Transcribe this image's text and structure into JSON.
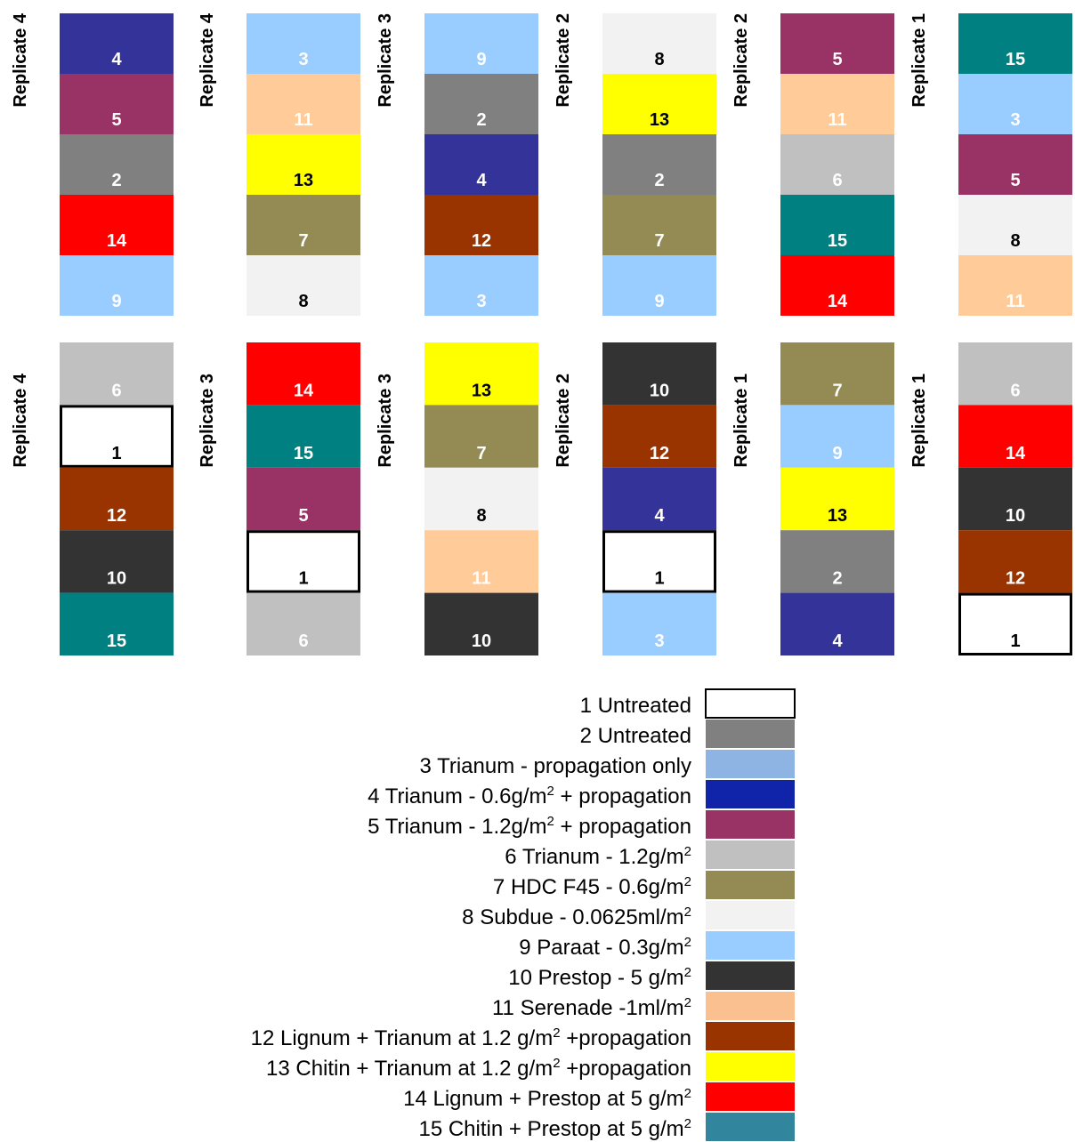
{
  "plot_colors": {
    "1": {
      "fill": "#ffffff",
      "text": "#000000"
    },
    "2": {
      "fill": "#808080",
      "text": "#ffffff"
    },
    "3": {
      "fill": "#99ccff",
      "text": "#ffffff"
    },
    "4": {
      "fill": "#333399",
      "text": "#ffffff"
    },
    "5": {
      "fill": "#993366",
      "text": "#ffffff"
    },
    "6": {
      "fill": "#c0c0c0",
      "text": "#ffffff"
    },
    "7": {
      "fill": "#948a54",
      "text": "#ffffff"
    },
    "8": {
      "fill": "#f2f2f2",
      "text": "#000000"
    },
    "9": {
      "fill": "#99ccff",
      "text": "#ffffff"
    },
    "10": {
      "fill": "#333333",
      "text": "#ffffff"
    },
    "11": {
      "fill": "#ffcc99",
      "text": "#ffffff"
    },
    "12": {
      "fill": "#993300",
      "text": "#ffffff"
    },
    "13": {
      "fill": "#ffff00",
      "text": "#000000"
    },
    "14": {
      "fill": "#ff0000",
      "text": "#ffffff"
    },
    "15": {
      "fill": "#008080",
      "text": "#ffffff"
    }
  },
  "rows": [
    {
      "columns": [
        {
          "replicate": "Replicate 4",
          "plots": [
            "4",
            "5",
            "2",
            "14",
            "9"
          ]
        },
        {
          "replicate": "Replicate 4",
          "plots": [
            "3",
            "11",
            "13",
            "7",
            "8"
          ]
        },
        {
          "replicate": "Replicate 3",
          "plots": [
            "9",
            "2",
            "4",
            "12",
            "3"
          ]
        },
        {
          "replicate": "Replicate 2",
          "plots": [
            "8",
            "13",
            "2",
            "7",
            "9"
          ]
        },
        {
          "replicate": "Replicate 2",
          "plots": [
            "5",
            "11",
            "6",
            "15",
            "14"
          ]
        },
        {
          "replicate": "Replicate 1",
          "plots": [
            "15",
            "3",
            "5",
            "8",
            "11"
          ]
        }
      ]
    },
    {
      "columns": [
        {
          "replicate": "Replicate 4",
          "plots": [
            "6",
            "1",
            "12",
            "10",
            "15"
          ]
        },
        {
          "replicate": "Replicate 3",
          "plots": [
            "14",
            "15",
            "5",
            "1",
            "6"
          ]
        },
        {
          "replicate": "Replicate 3",
          "plots": [
            "13",
            "7",
            "8",
            "11",
            "10"
          ]
        },
        {
          "replicate": "Replicate 2",
          "plots": [
            "10",
            "12",
            "4",
            "1",
            "3"
          ]
        },
        {
          "replicate": "Replicate 1",
          "plots": [
            "7",
            "9",
            "13",
            "2",
            "4"
          ]
        },
        {
          "replicate": "Replicate 1",
          "plots": [
            "6",
            "14",
            "10",
            "12",
            "1"
          ]
        }
      ]
    }
  ],
  "legend": [
    {
      "text": "1 Untreated",
      "color": "#ffffff"
    },
    {
      "text": "2 Untreated",
      "color": "#808080"
    },
    {
      "text": "3 Trianum - propagation only",
      "color": "#8db4e2"
    },
    {
      "text": "4 Trianum - 0.6g/m",
      "sup": "2",
      "tail": " + propagation",
      "color": "#0f24a8"
    },
    {
      "text": "5 Trianum - 1.2g/m",
      "sup": "2",
      "tail": " + propagation",
      "color": "#993366"
    },
    {
      "text": "6 Trianum - 1.2g/m",
      "sup": "2",
      "color": "#c0c0c0"
    },
    {
      "text": "7 HDC F45 - 0.6g/m",
      "sup": "2",
      "color": "#948a54"
    },
    {
      "text": "8 Subdue - 0.0625ml/m",
      "sup": "2",
      "color": "#f2f2f2"
    },
    {
      "text": "9 Paraat - 0.3g/m",
      "sup": "2",
      "color": "#99ccff"
    },
    {
      "text": "10 Prestop - 5 g/m",
      "sup": "2",
      "color": "#333333"
    },
    {
      "text": "11 Serenade -1ml/m",
      "sup": "2",
      "color": "#fac090"
    },
    {
      "text": "12 Lignum + Trianum at 1.2 g/m",
      "sup": "2",
      "tail": " +propagation",
      "color": "#993300"
    },
    {
      "text": "13 Chitin + Trianum at 1.2 g/m",
      "sup": "2",
      "tail": " +propagation",
      "color": "#ffff00"
    },
    {
      "text": "14 Lignum + Prestop at 5 g/m",
      "sup": "2",
      "color": "#ff0000"
    },
    {
      "text": "15 Chitin + Prestop at 5 g/m",
      "sup": "2",
      "color": "#31859c"
    }
  ]
}
